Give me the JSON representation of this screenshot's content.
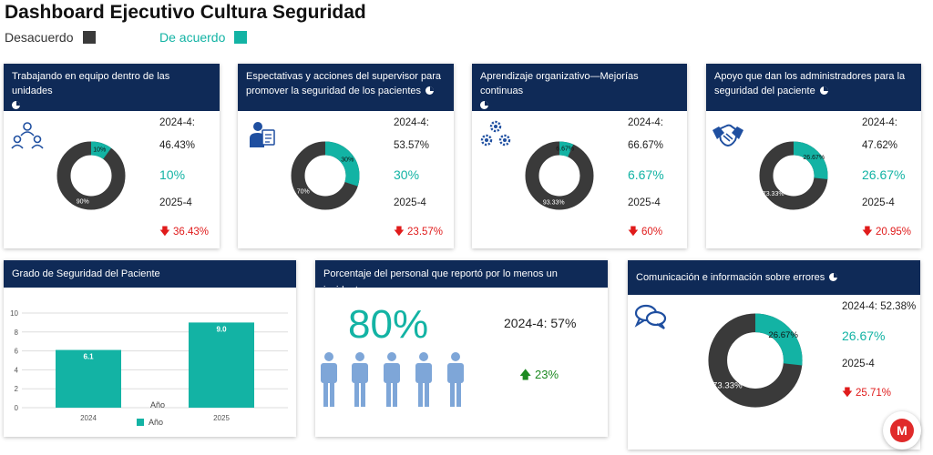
{
  "title": "Dashboard Ejecutivo Cultura Seguridad",
  "legend": {
    "disagree": "Desacuerdo",
    "agree": "De acuerdo"
  },
  "colors": {
    "disagree": "#3a3a3a",
    "agree": "#13b3a4",
    "header": "#0f2a57",
    "down": "#e01b1b",
    "up": "#1d8a22"
  },
  "cards": [
    {
      "title": "Trabajando en equipo dentro de las unidades",
      "icon": "team-icon",
      "prev_label": "2024-4:",
      "prev_value": "46.43%",
      "current_value": "10%",
      "current_label": "2025-4",
      "change": "36.43%",
      "agree_pct": 10,
      "agree_label": "10%",
      "disagree_label": "90%"
    },
    {
      "title": "Espectativas y acciones del supervisor para promover la seguridad de los pacientes",
      "icon": "supervisor-icon",
      "prev_label": "2024-4:",
      "prev_value": "53.57%",
      "current_value": "30%",
      "current_label": "2025-4",
      "change": "23.57%",
      "agree_pct": 30,
      "agree_label": "30%",
      "disagree_label": "70%"
    },
    {
      "title": "Aprendizaje organizativo—Mejorías continuas",
      "icon": "gears-icon",
      "prev_label": "2024-4:",
      "prev_value": "66.67%",
      "current_value": "6.67%",
      "current_label": "2025-4",
      "change": "60%",
      "agree_pct": 6.67,
      "agree_label": "6.67%",
      "disagree_label": "93.33%"
    },
    {
      "title": "Apoyo que dan los administradores para la seguridad del paciente",
      "icon": "handshake-icon",
      "prev_label": "2024-4:",
      "prev_value": "47.62%",
      "current_value": "26.67%",
      "current_label": "2025-4",
      "change": "20.95%",
      "agree_pct": 26.67,
      "agree_label": "26.67%",
      "disagree_label": "73.33%"
    }
  ],
  "grade": {
    "title": "Grado de Seguridad del Paciente",
    "chart_data": {
      "type": "bar",
      "categories": [
        "2024",
        "2025"
      ],
      "values": [
        6.1,
        9.0
      ],
      "value_labels": [
        "6.1",
        "9.0"
      ],
      "xlabel": "Año",
      "legend": "Año",
      "ylim": [
        0,
        10
      ],
      "yticks": [
        "0",
        "2",
        "4",
        "6",
        "8",
        "10"
      ]
    }
  },
  "incident": {
    "title": "Porcentaje del personal que reportó por lo menos un incidente",
    "value": "80%",
    "prev": "2024-4: 57%",
    "change": "23%"
  },
  "comm": {
    "title": "Comunicación e información sobre errores",
    "prev": "2024-4: 52.38%",
    "current_value": "26.67%",
    "current_label": "2025-4",
    "change": "25.71%",
    "agree_pct": 26.67,
    "agree_label": "26.67%",
    "disagree_label": "73.33%"
  },
  "fab": {
    "label": "M"
  }
}
